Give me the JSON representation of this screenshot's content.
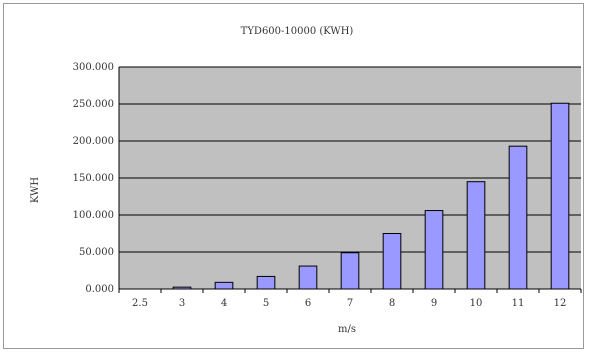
{
  "chart_data": {
    "type": "bar",
    "title": "TYD600-10000 (KWH)",
    "xlabel": "m/s",
    "ylabel": "KWH",
    "categories": [
      "2.5",
      "3",
      "4",
      "5",
      "6",
      "7",
      "8",
      "9",
      "10",
      "11",
      "12"
    ],
    "series": [
      {
        "values": [
          0,
          2500,
          9000,
          17000,
          31000,
          49000,
          75000,
          106000,
          145000,
          193000,
          251000
        ]
      }
    ],
    "ylim": [
      0,
      300000
    ],
    "yticks": [
      "0.000",
      "50.000",
      "100.000",
      "150.000",
      "200.000",
      "250.000",
      "300.000"
    ],
    "grid": true,
    "legend": "none",
    "colors": {
      "plot_background": "#c0c0c0",
      "bar_fill": "#9999ff",
      "bar_stroke": "#000000",
      "grid": "#000000"
    }
  }
}
